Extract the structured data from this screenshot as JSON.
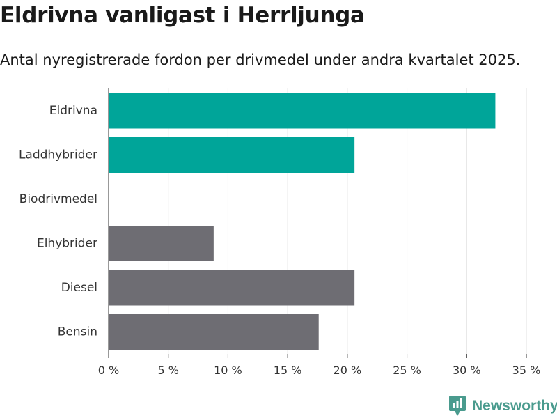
{
  "title": "Eldrivna vanligast i Herrljunga",
  "subtitle": "Antal nyregistrerade fordon per drivmedel under andra kvartalet 2025.",
  "brand": {
    "name": "Newsworthy",
    "color": "#4a9b8e"
  },
  "chart_data": {
    "type": "bar",
    "orientation": "horizontal",
    "categories": [
      "Eldrivna",
      "Laddhybrider",
      "Biodrivmedel",
      "Elhybrider",
      "Diesel",
      "Bensin"
    ],
    "values": [
      32.4,
      20.6,
      0,
      8.8,
      20.6,
      17.6
    ],
    "colors": [
      "#00a599",
      "#00a599",
      "#6e6d73",
      "#6e6d73",
      "#6e6d73",
      "#6e6d73"
    ],
    "xlim": [
      0,
      35
    ],
    "xticks": [
      0,
      5,
      10,
      15,
      20,
      25,
      30,
      35
    ],
    "tick_labels": [
      "0 %",
      "5 %",
      "10 %",
      "15 %",
      "20 %",
      "25 %",
      "30 %",
      "35 %"
    ],
    "grid": true
  }
}
